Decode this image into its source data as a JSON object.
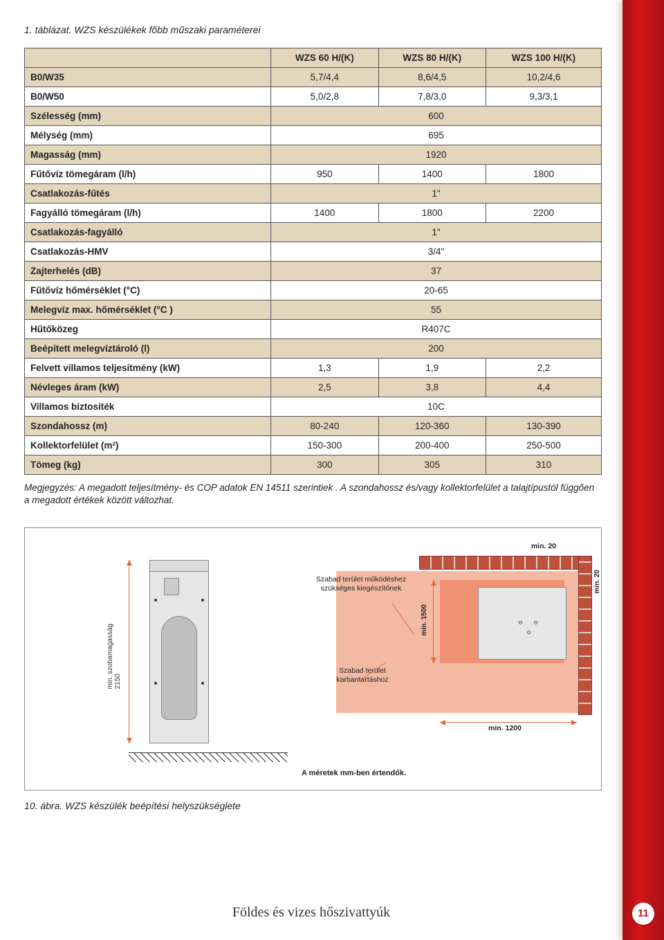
{
  "caption_top": "1. táblázat. WZS készülékek főbb műszaki paraméterei",
  "table": {
    "headers": [
      "",
      "WZS 60 H/(K)",
      "WZS 80 H/(K)",
      "WZS 100 H/(K)"
    ],
    "rows": [
      {
        "label": "B0/W35",
        "c1": "5,7/4,4",
        "c2": "8,6/4,5",
        "c3": "10,2/4,6",
        "shade": "beige"
      },
      {
        "label": "B0/W50",
        "c1": "5,0/2,8",
        "c2": "7,8/3,0",
        "c3": "9,3/3,1",
        "shade": "white"
      },
      {
        "label": "Szélesség (mm)",
        "span": "600",
        "shade": "beige"
      },
      {
        "label": "Mélység (mm)",
        "span": "695",
        "shade": "white"
      },
      {
        "label": "Magasság (mm)",
        "span": "1920",
        "shade": "beige"
      },
      {
        "label": "Fűtővíz tömegáram (l/h)",
        "c1": "950",
        "c2": "1400",
        "c3": "1800",
        "shade": "white"
      },
      {
        "label": "Csatlakozás-fűtés",
        "span": "1\"",
        "shade": "beige"
      },
      {
        "label": "Fagyálló tömegáram (l/h)",
        "c1": "1400",
        "c2": "1800",
        "c3": "2200",
        "shade": "white"
      },
      {
        "label": "Csatlakozás-fagyálló",
        "span": "1\"",
        "shade": "beige"
      },
      {
        "label": "Csatlakozás-HMV",
        "span": "3/4\"",
        "shade": "white"
      },
      {
        "label": "Zajterhelés (dB)",
        "span": "37",
        "shade": "beige"
      },
      {
        "label": "Fűtővíz hőmérséklet (°C)",
        "span": "20-65",
        "shade": "white"
      },
      {
        "label": "Melegvíz max. hőmérséklet (°C )",
        "span": "55",
        "shade": "beige"
      },
      {
        "label": "Hűtőközeg",
        "span": "R407C",
        "shade": "white"
      },
      {
        "label": "Beépített melegvíztároló (l)",
        "span": "200",
        "shade": "beige"
      },
      {
        "label": "Felvett villamos teljesítmény (kW)",
        "c1": "1,3",
        "c2": "1,9",
        "c3": "2,2",
        "shade": "white"
      },
      {
        "label": "Névleges áram (kW)",
        "c1": "2,5",
        "c2": "3,8",
        "c3": "4,4",
        "shade": "beige"
      },
      {
        "label": "Villamos biztosíték",
        "span": "10C",
        "shade": "white"
      },
      {
        "label": "Szondahossz (m)",
        "c1": "80-240",
        "c2": "120-360",
        "c3": "130-390",
        "shade": "beige"
      },
      {
        "label": "Kollektorfelület (m²)",
        "c1": "150-300",
        "c2": "200-400",
        "c3": "250-500",
        "shade": "white"
      },
      {
        "label": "Tömeg (kg)",
        "c1": "300",
        "c2": "305",
        "c3": "310",
        "shade": "beige"
      }
    ]
  },
  "note": "Megjegyzés: A megadott teljesítmény- és COP adatok EN 14511 szerintiek . A szondahossz és/vagy kollektorfelület a talajtípustól függően a megadott értékek között változhat.",
  "diagram": {
    "room_height_label": "min. szobamagasság",
    "room_height_value": "2150",
    "label_accessory": "Szabad terület működéshez szükséges kiegészítőnek",
    "label_maint": "Szabad terület karbantartáshoz",
    "dim_top": "min. 20",
    "dim_right": "min. 20",
    "dim_inner_v": "min. 1500",
    "dim_bottom": "min. 1200",
    "units_note": "A méretek mm-ben értendők.",
    "colors": {
      "wall": "#c0503c",
      "mortar": "#d8d5c8",
      "area_light": "#f3b9a3",
      "area_dark": "#ee9272",
      "arrow": "#e16b34",
      "equip": "#e6e6e6"
    }
  },
  "caption_bottom": "10. ábra. WZS készülék beépítési helyszükséglete",
  "footer_title": "Földes és vizes hőszivattyúk",
  "page_number": "11"
}
